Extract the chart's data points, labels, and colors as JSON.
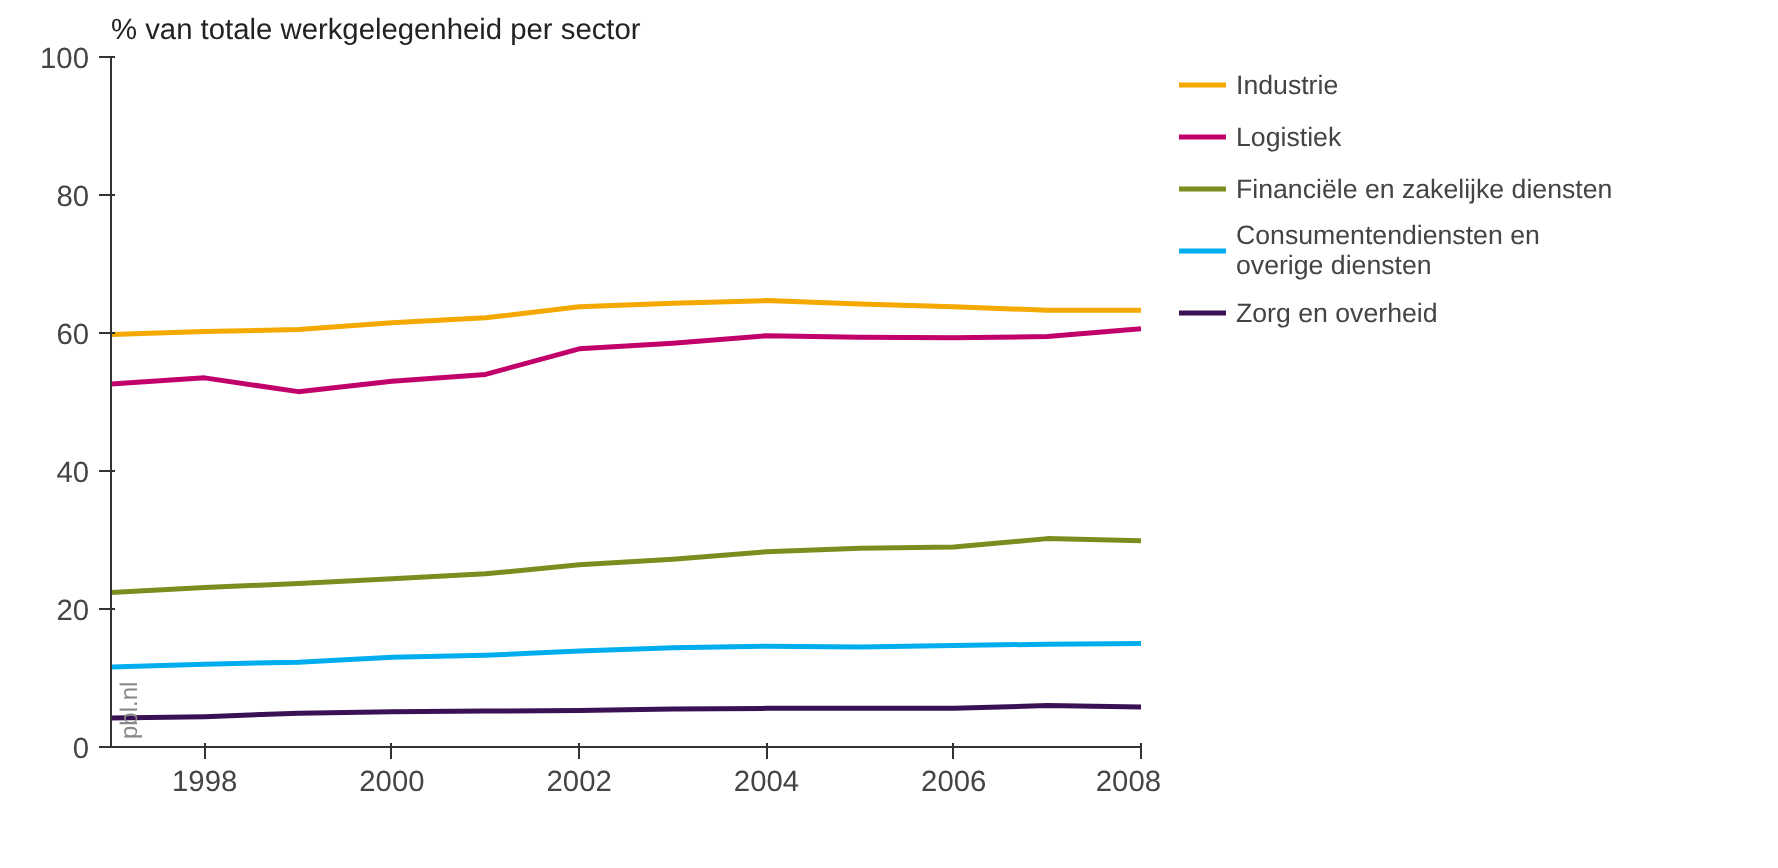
{
  "chart_data": {
    "type": "line",
    "title": "% van totale werkgelegenheid per sector",
    "x": [
      1997,
      1998,
      1999,
      2000,
      2001,
      2002,
      2003,
      2004,
      2005,
      2006,
      2007,
      2008
    ],
    "series": [
      {
        "name": "Industrie",
        "color": "#f5a800",
        "values": [
          59.8,
          60.2,
          60.5,
          61.5,
          62.2,
          63.8,
          64.3,
          64.7,
          64.2,
          63.8,
          63.3,
          63.3
        ]
      },
      {
        "name": "Logistiek",
        "color": "#c2006b",
        "values": [
          52.6,
          53.5,
          51.5,
          53.0,
          54.0,
          57.7,
          58.5,
          59.6,
          59.4,
          59.3,
          59.5,
          60.6
        ]
      },
      {
        "name": "Financiële en zakelijke diensten",
        "color": "#7d8c1e",
        "values": [
          22.4,
          23.1,
          23.7,
          24.4,
          25.1,
          26.4,
          27.2,
          28.3,
          28.8,
          29.0,
          30.2,
          29.9
        ]
      },
      {
        "name": "Consumentendiensten en overige diensten",
        "color": "#00aeef",
        "values": [
          11.6,
          12.0,
          12.3,
          13.0,
          13.3,
          13.9,
          14.4,
          14.6,
          14.5,
          14.7,
          14.9,
          15.0
        ]
      },
      {
        "name": "Zorg en overheid",
        "color": "#3a1155",
        "values": [
          4.2,
          4.4,
          4.9,
          5.1,
          5.2,
          5.3,
          5.5,
          5.6,
          5.6,
          5.6,
          6.0,
          5.8
        ]
      }
    ],
    "xlim": [
      1997,
      2008
    ],
    "xticks": [
      1998,
      2000,
      2002,
      2004,
      2006,
      2008
    ],
    "ylim": [
      0,
      100
    ],
    "yticks": [
      0,
      20,
      40,
      60,
      80,
      100
    ],
    "grid": false,
    "legend": "right",
    "marker": "none",
    "line_style": "solid",
    "annotations": [
      "pbl.nl"
    ]
  }
}
